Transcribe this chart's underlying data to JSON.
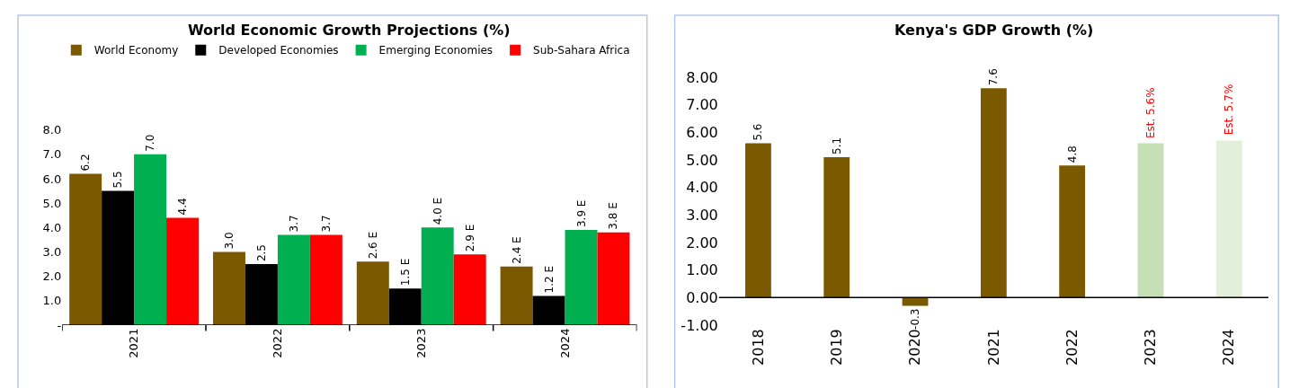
{
  "chart_data": [
    {
      "type": "bar",
      "title": "World Economic Growth Projections (%)",
      "categories": [
        "2021",
        "2022",
        "2023",
        "2024"
      ],
      "series": [
        {
          "name": "World Economy",
          "color": "#7a5901",
          "values": [
            6.2,
            3.0,
            2.6,
            2.4
          ],
          "value_labels": [
            "6.2",
            "3.0",
            "2.6 E",
            "2.4 E"
          ]
        },
        {
          "name": "Developed Economies",
          "color": "#000000",
          "values": [
            5.5,
            2.5,
            1.5,
            1.2
          ],
          "value_labels": [
            "5.5",
            "2.5",
            "1.5 E",
            "1.2 E"
          ]
        },
        {
          "name": "Emerging Economies",
          "color": "#00b050",
          "values": [
            7.0,
            3.7,
            4.0,
            3.9
          ],
          "value_labels": [
            "7.0",
            "3.7",
            "4.0 E",
            "3.9 E"
          ]
        },
        {
          "name": "Sub-Sahara Africa",
          "color": "#ff0000",
          "values": [
            4.4,
            3.7,
            2.9,
            3.8
          ],
          "value_labels": [
            "4.4",
            "3.7",
            "2.9 E",
            "3.8 E"
          ]
        }
      ],
      "ylim": [
        0,
        8
      ],
      "yticks": [
        {
          "value": 0,
          "label": "-"
        },
        {
          "value": 1,
          "label": "1.0"
        },
        {
          "value": 2,
          "label": "2.0"
        },
        {
          "value": 3,
          "label": "3.0"
        },
        {
          "value": 4,
          "label": "4.0"
        },
        {
          "value": 5,
          "label": "5.0"
        },
        {
          "value": 6,
          "label": "6.0"
        },
        {
          "value": 7,
          "label": "7.0"
        },
        {
          "value": 8,
          "label": "8.0"
        }
      ],
      "legend": "top"
    },
    {
      "type": "bar",
      "title": "Kenya's GDP Growth (%)",
      "categories": [
        "2018",
        "2019",
        "2020",
        "2021",
        "2022",
        "2023",
        "2024"
      ],
      "values": [
        5.6,
        5.1,
        -0.3,
        7.6,
        4.8,
        5.6,
        5.7
      ],
      "colors": [
        "#7a5901",
        "#7a5901",
        "#7a5901",
        "#7a5901",
        "#7a5901",
        "#c5e0b4",
        "#e2efda"
      ],
      "value_labels": [
        "5.6",
        "5.1",
        "-0.3",
        "7.6",
        "4.8",
        null,
        null
      ],
      "annotations": [
        {
          "text": "Est. 5.6%",
          "x": "2023",
          "y": 5.6
        },
        {
          "text": "Est. 5.7%",
          "x": "2024",
          "y": 5.7
        }
      ],
      "ylim": [
        -1,
        8
      ],
      "yticks": [
        {
          "value": -1,
          "label": "-1.00"
        },
        {
          "value": 0,
          "label": "0.00"
        },
        {
          "value": 1,
          "label": "1.00"
        },
        {
          "value": 2,
          "label": "2.00"
        },
        {
          "value": 3,
          "label": "3.00"
        },
        {
          "value": 4,
          "label": "4.00"
        },
        {
          "value": 5,
          "label": "5.00"
        },
        {
          "value": 6,
          "label": "6.00"
        },
        {
          "value": 7,
          "label": "7.00"
        },
        {
          "value": 8,
          "label": "8.00"
        }
      ]
    }
  ]
}
